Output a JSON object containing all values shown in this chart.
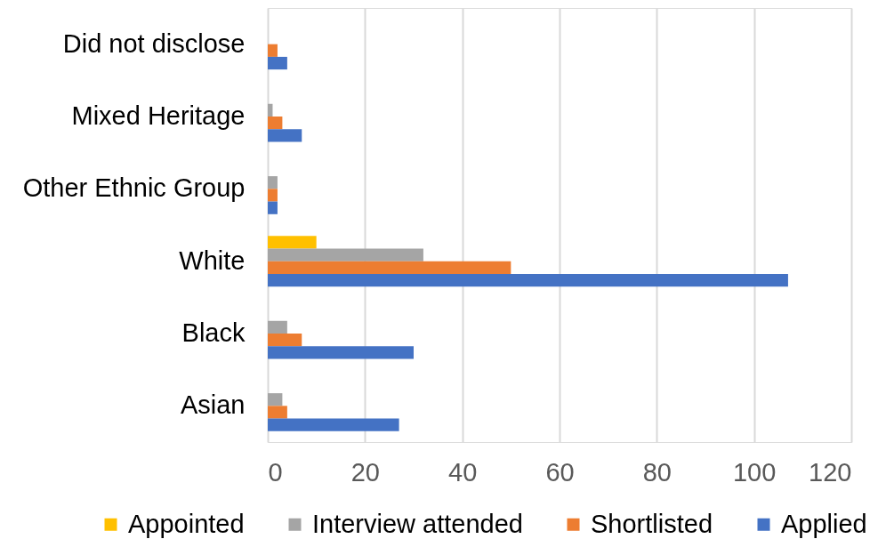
{
  "chart_data": {
    "type": "bar",
    "orientation": "horizontal",
    "categories": [
      "Did not disclose",
      "Mixed Heritage",
      "Other Ethnic Group",
      "White",
      "Black",
      "Asian"
    ],
    "series": [
      {
        "name": "Appointed",
        "color": "#ffc000",
        "values": [
          0,
          0,
          0,
          10,
          0,
          0
        ]
      },
      {
        "name": "Interview attended",
        "color": "#a5a5a5",
        "values": [
          0,
          1,
          2,
          32,
          4,
          3
        ]
      },
      {
        "name": "Shortlisted",
        "color": "#ed7d31",
        "values": [
          2,
          3,
          2,
          50,
          7,
          4
        ]
      },
      {
        "name": "Applied",
        "color": "#4472c4",
        "values": [
          4,
          7,
          2,
          107,
          30,
          27
        ]
      }
    ],
    "xlim": [
      0,
      120
    ],
    "xticks": [
      0,
      20,
      40,
      60,
      80,
      100,
      120
    ],
    "grid": "x",
    "legend": "bottom"
  }
}
